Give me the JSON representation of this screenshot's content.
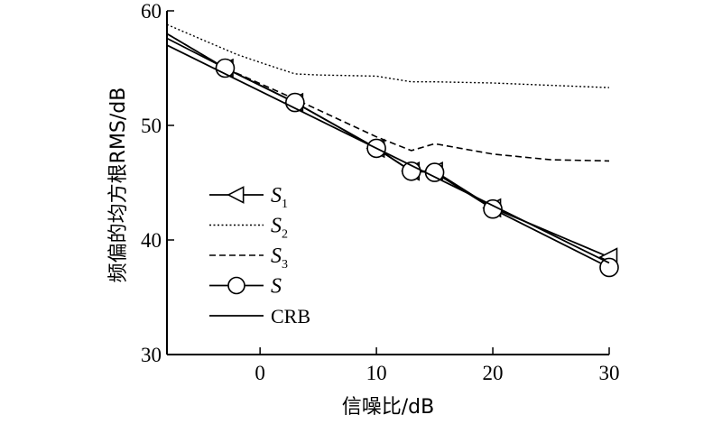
{
  "chart_data": {
    "type": "line",
    "xlabel": "信噪比/dB",
    "ylabel": "频偏的均方根RMS/dB",
    "xlim": [
      -8,
      30
    ],
    "ylim": [
      30,
      60
    ],
    "xticks": [
      0,
      10,
      20,
      30
    ],
    "yticks": [
      30,
      40,
      50,
      60
    ],
    "legend_placement": "center-left",
    "series": [
      {
        "name": "S",
        "sub": "1",
        "italic": true,
        "style": "solid",
        "marker": "triangle-left",
        "x": [
          -8,
          -3,
          3,
          10,
          13,
          15,
          20,
          30
        ],
        "y": [
          58.0,
          55.0,
          52.0,
          48.0,
          46.0,
          46.0,
          42.8,
          38.5
        ],
        "markers_at": [
          -3,
          3,
          10,
          13,
          15,
          20,
          30
        ]
      },
      {
        "name": "S",
        "sub": "2",
        "italic": true,
        "style": "dotted",
        "marker": "none",
        "x": [
          -8,
          -5,
          -2,
          0,
          3,
          5,
          10,
          13,
          15,
          20,
          25,
          30
        ],
        "y": [
          58.8,
          57.5,
          56.2,
          55.5,
          54.5,
          54.4,
          54.3,
          53.8,
          53.8,
          53.7,
          53.5,
          53.3
        ]
      },
      {
        "name": "S",
        "sub": "3",
        "italic": true,
        "style": "dashed",
        "marker": "none",
        "x": [
          -8,
          -3,
          3,
          10,
          13,
          15,
          20,
          25,
          30
        ],
        "y": [
          58.0,
          55.0,
          52.3,
          49.0,
          47.8,
          48.4,
          47.5,
          47.0,
          46.9
        ]
      },
      {
        "name": "S",
        "sub": "",
        "italic": true,
        "style": "solid",
        "marker": "circle",
        "x": [
          -8,
          -3,
          3,
          10,
          13,
          15,
          20,
          30
        ],
        "y": [
          57.6,
          55.0,
          52.0,
          48.0,
          46.0,
          45.9,
          42.7,
          37.6
        ],
        "markers_at": [
          -3,
          3,
          10,
          13,
          15,
          20,
          30
        ]
      },
      {
        "name": "CRB",
        "sub": "",
        "italic": false,
        "style": "solid",
        "marker": "none",
        "x": [
          -8,
          30
        ],
        "y": [
          57.0,
          38.0
        ]
      }
    ]
  }
}
